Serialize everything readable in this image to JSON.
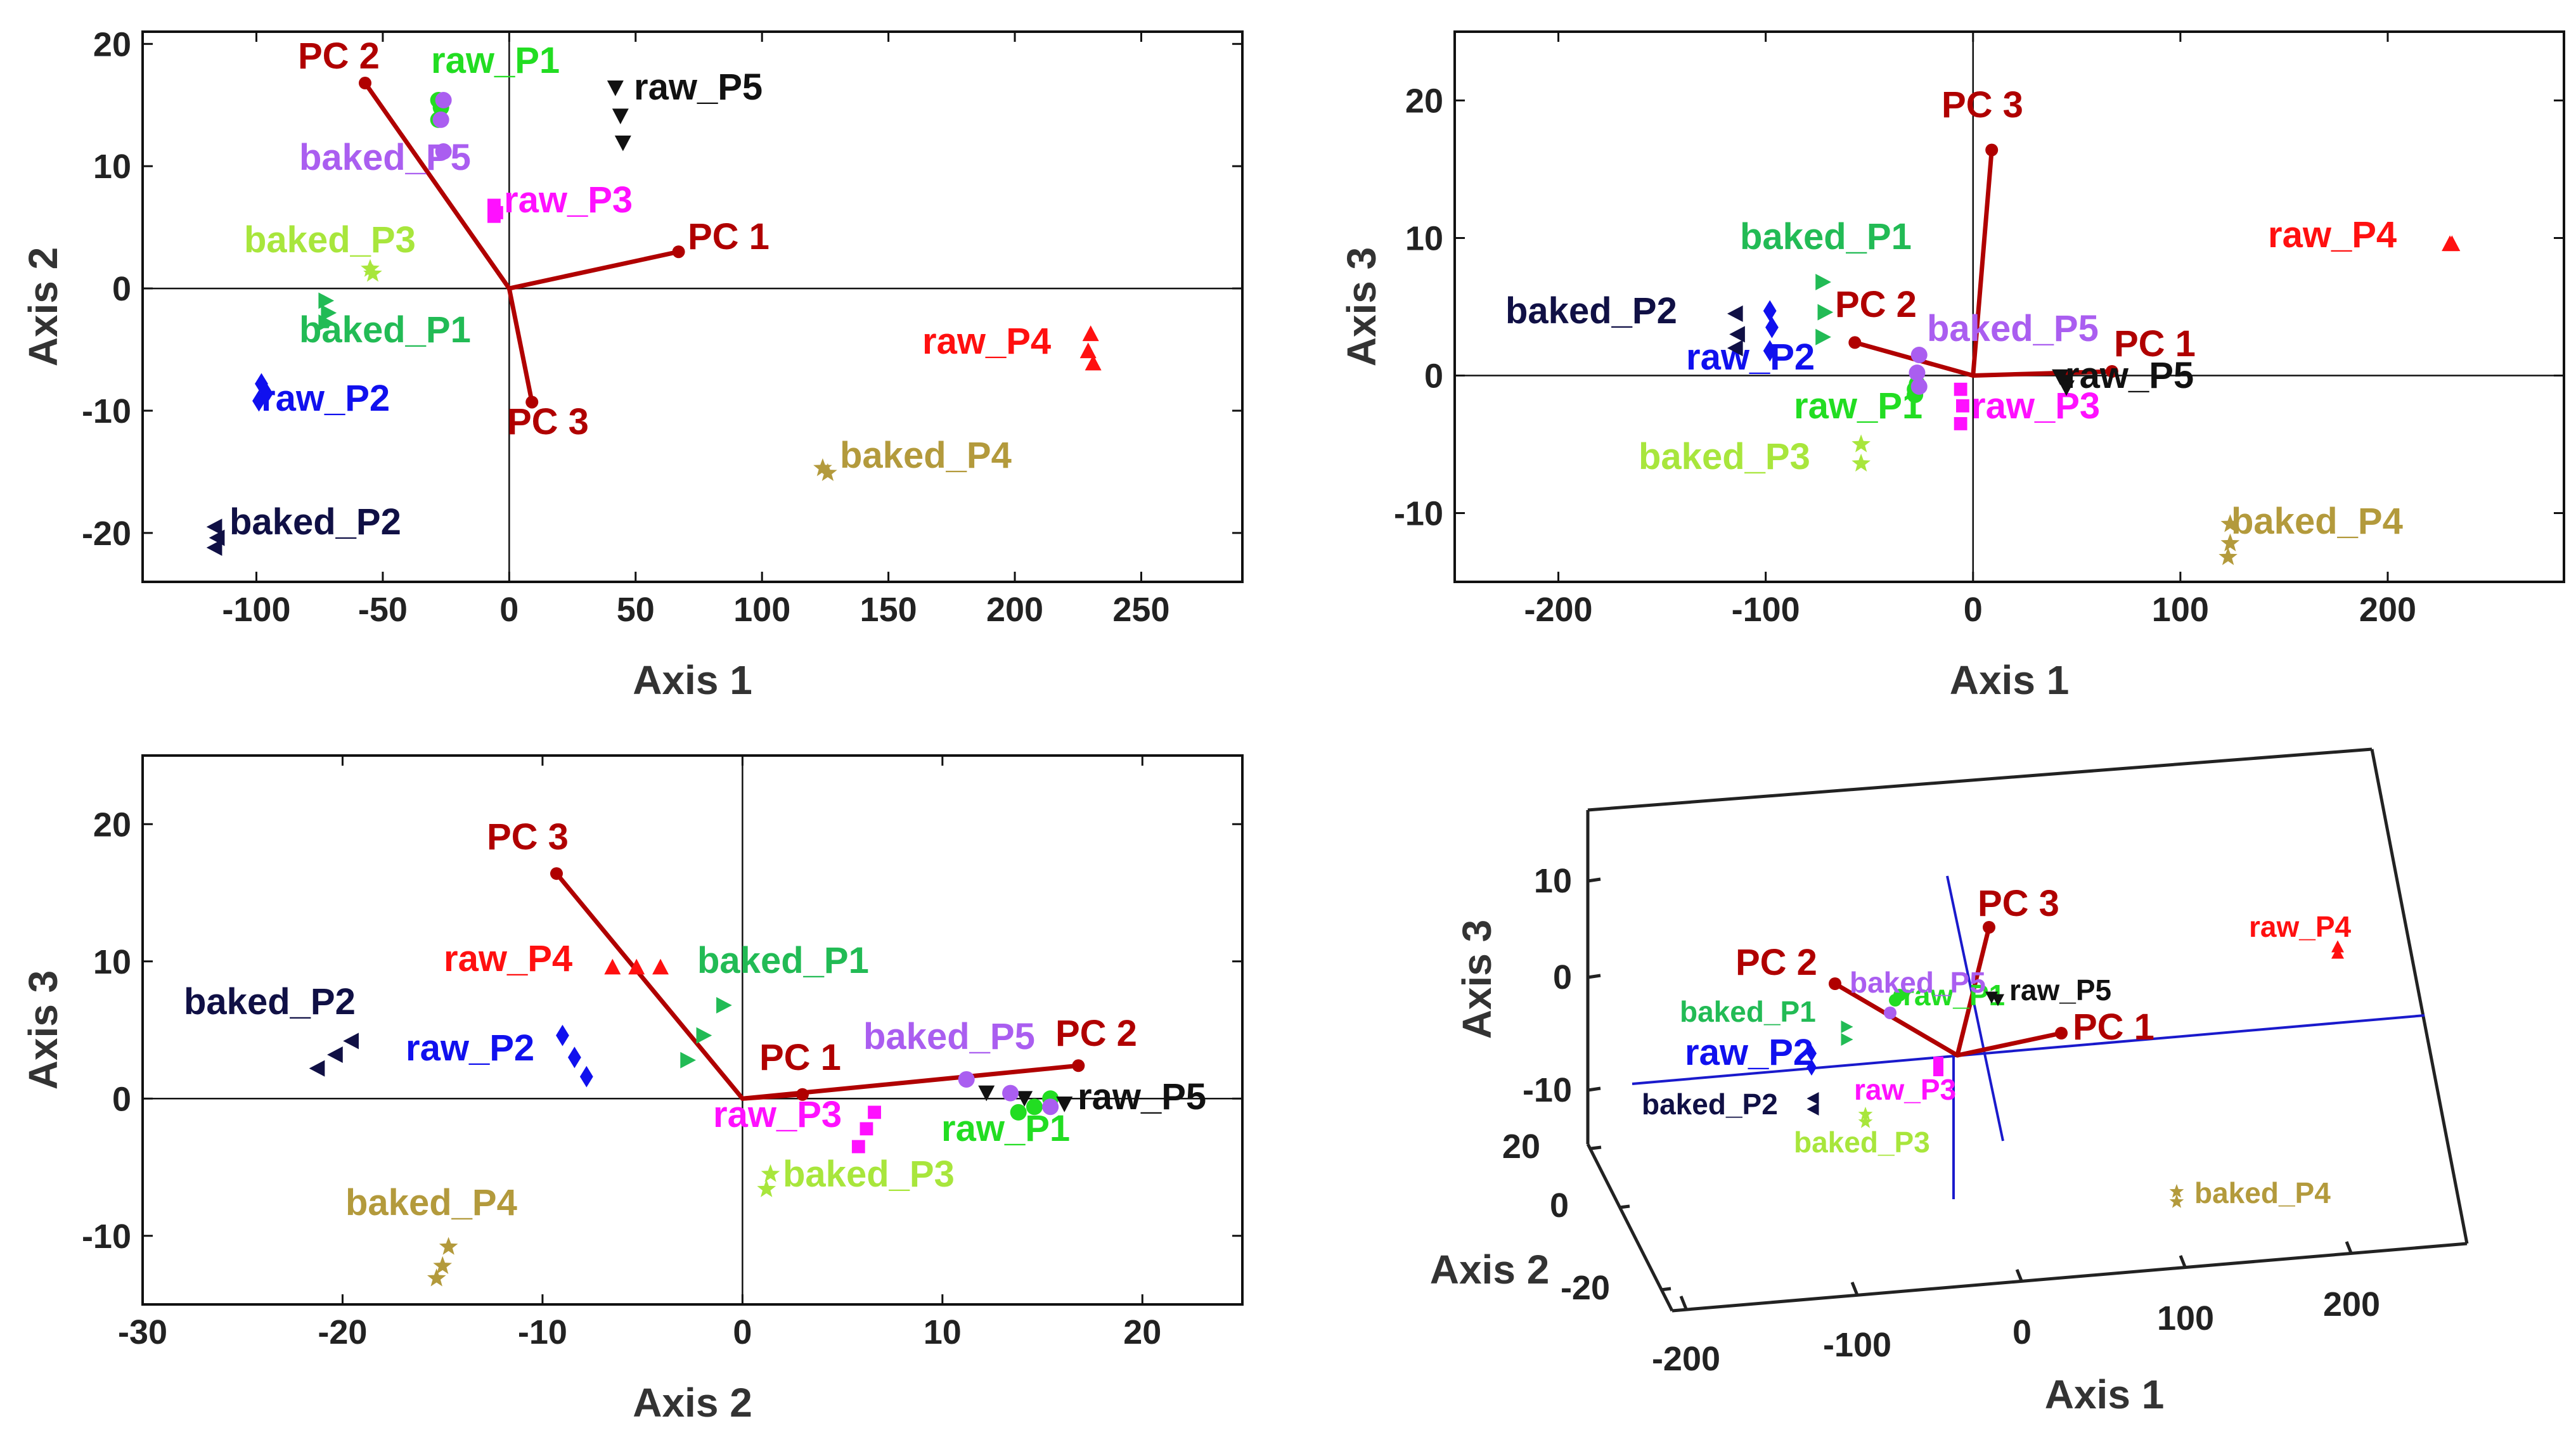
{
  "chart_data": [
    {
      "type": "scatter",
      "name": "axis1-vs-axis2",
      "xlabel": "Axis 1",
      "ylabel": "Axis 2",
      "xlim": [
        -145,
        290
      ],
      "ylim": [
        -24,
        21
      ],
      "xticks": [
        -100,
        -50,
        0,
        50,
        100,
        150,
        200,
        250
      ],
      "yticks": [
        -20,
        -10,
        0,
        10,
        20
      ],
      "loadings": [
        {
          "label": "PC 1",
          "x": 67,
          "y": 3
        },
        {
          "label": "PC 2",
          "x": -57,
          "y": 16.8
        },
        {
          "label": "PC 3",
          "x": 9,
          "y": -9.3
        }
      ],
      "groups": [
        {
          "label": "raw_P1",
          "color": "#22dd22",
          "marker": "circle",
          "points": [
            [
              -28,
              13.8
            ],
            [
              -27,
              14.8
            ],
            [
              -28,
              15.4
            ]
          ]
        },
        {
          "label": "raw_P2",
          "color": "#1010ee",
          "marker": "diamond",
          "points": [
            [
              -98,
              -7.8
            ],
            [
              -96,
              -8.6
            ],
            [
              -99,
              -9.2
            ]
          ]
        },
        {
          "label": "raw_P3",
          "color": "#ff10ff",
          "marker": "square",
          "points": [
            [
              -6,
              6.8
            ],
            [
              -5,
              6.2
            ],
            [
              -6,
              5.9
            ]
          ]
        },
        {
          "label": "raw_P4",
          "color": "#ff1010",
          "marker": "triangle-up",
          "points": [
            [
              230,
              -3.8
            ],
            [
              229,
              -5.2
            ],
            [
              231,
              -6.2
            ]
          ]
        },
        {
          "label": "raw_P5",
          "color": "#111111",
          "marker": "triangle-down",
          "points": [
            [
              42,
              16.5
            ],
            [
              44,
              14.2
            ],
            [
              45,
              12
            ]
          ]
        },
        {
          "label": "baked_P1",
          "color": "#22bb55",
          "marker": "triangle-right",
          "points": [
            [
              -73,
              -1
            ],
            [
              -72,
              -2
            ],
            [
              -73,
              -2.8
            ]
          ]
        },
        {
          "label": "baked_P2",
          "color": "#101045",
          "marker": "triangle-left",
          "points": [
            [
              -116,
              -19.5
            ],
            [
              -115,
              -20.4
            ],
            [
              -116,
              -21.2
            ]
          ]
        },
        {
          "label": "baked_P3",
          "color": "#a8e63c",
          "marker": "star",
          "points": [
            [
              -55,
              1.6
            ],
            [
              -54,
              1.2
            ]
          ]
        },
        {
          "label": "baked_P4",
          "color": "#b39a3c",
          "marker": "star",
          "points": [
            [
              124,
              -14.7
            ],
            [
              126,
              -15.1
            ]
          ]
        },
        {
          "label": "baked_P5",
          "color": "#aa5ef0",
          "marker": "circle",
          "points": [
            [
              -26,
              15.4
            ],
            [
              -27,
              13.8
            ],
            [
              -26,
              11.2
            ]
          ]
        }
      ]
    },
    {
      "type": "scatter",
      "name": "axis1-vs-axis3",
      "xlabel": "Axis 1",
      "ylabel": "Axis 3",
      "xlim": [
        -250,
        285
      ],
      "ylim": [
        -15,
        25
      ],
      "xticks": [
        -200,
        -100,
        0,
        100,
        200
      ],
      "yticks": [
        -10,
        0,
        10,
        20
      ],
      "loadings": [
        {
          "label": "PC 1",
          "x": 67,
          "y": 0.3
        },
        {
          "label": "PC 2",
          "x": -57,
          "y": 2.4
        },
        {
          "label": "PC 3",
          "x": 9,
          "y": 16.4
        }
      ],
      "groups": [
        {
          "label": "raw_P1",
          "color": "#22dd22",
          "marker": "circle",
          "points": [
            [
              -28,
              -1
            ],
            [
              -27,
              -0.6
            ],
            [
              -28,
              -1.4
            ]
          ]
        },
        {
          "label": "raw_P2",
          "color": "#1010ee",
          "marker": "diamond",
          "points": [
            [
              -98,
              4.7
            ],
            [
              -97,
              3.5
            ],
            [
              -98,
              1.8
            ]
          ]
        },
        {
          "label": "raw_P3",
          "color": "#ff10ff",
          "marker": "square",
          "points": [
            [
              -6,
              -1
            ],
            [
              -5,
              -2.2
            ],
            [
              -6,
              -3.5
            ]
          ]
        },
        {
          "label": "raw_P4",
          "color": "#ff1010",
          "marker": "triangle-up",
          "points": [
            [
              230,
              9.5
            ],
            [
              231,
              9.5
            ]
          ]
        },
        {
          "label": "raw_P5",
          "color": "#111111",
          "marker": "triangle-down",
          "points": [
            [
              42,
              0
            ],
            [
              44,
              -0.4
            ],
            [
              45,
              -0.8
            ]
          ]
        },
        {
          "label": "baked_P1",
          "color": "#22bb55",
          "marker": "triangle-right",
          "points": [
            [
              -73,
              6.8
            ],
            [
              -72,
              4.6
            ],
            [
              -73,
              2.8
            ]
          ]
        },
        {
          "label": "baked_P2",
          "color": "#101045",
          "marker": "triangle-left",
          "points": [
            [
              -114,
              4.5
            ],
            [
              -113,
              3
            ],
            [
              -114,
              2
            ]
          ]
        },
        {
          "label": "baked_P3",
          "color": "#a8e63c",
          "marker": "star",
          "points": [
            [
              -54,
              -5
            ],
            [
              -54,
              -6.4
            ]
          ]
        },
        {
          "label": "baked_P4",
          "color": "#b39a3c",
          "marker": "star",
          "points": [
            [
              124,
              -10.8
            ],
            [
              124,
              -12.2
            ],
            [
              123,
              -13.2
            ]
          ]
        },
        {
          "label": "baked_P5",
          "color": "#aa5ef0",
          "marker": "circle",
          "points": [
            [
              -26,
              1.5
            ],
            [
              -27,
              0.2
            ],
            [
              -26,
              -0.8
            ]
          ]
        }
      ]
    },
    {
      "type": "scatter",
      "name": "axis2-vs-axis3",
      "xlabel": "Axis 2",
      "ylabel": "Axis 3",
      "xlim": [
        -30,
        25
      ],
      "ylim": [
        -15,
        25
      ],
      "xticks": [
        -30,
        -20,
        -10,
        0,
        10,
        20
      ],
      "yticks": [
        -10,
        0,
        10,
        20
      ],
      "loadings": [
        {
          "label": "PC 1",
          "x": 3,
          "y": 0.3
        },
        {
          "label": "PC 2",
          "x": 16.8,
          "y": 2.4
        },
        {
          "label": "PC 3",
          "x": -9.3,
          "y": 16.4
        }
      ],
      "groups": [
        {
          "label": "raw_P1",
          "color": "#22dd22",
          "marker": "circle",
          "points": [
            [
              13.8,
              -1
            ],
            [
              14.6,
              -0.6
            ],
            [
              15.4,
              0
            ]
          ]
        },
        {
          "label": "raw_P2",
          "color": "#1010ee",
          "marker": "diamond",
          "points": [
            [
              -9,
              4.6
            ],
            [
              -8.4,
              3
            ],
            [
              -7.8,
              1.6
            ]
          ]
        },
        {
          "label": "raw_P3",
          "color": "#ff10ff",
          "marker": "square",
          "points": [
            [
              6.6,
              -1
            ],
            [
              6.2,
              -2.2
            ],
            [
              5.8,
              -3.5
            ]
          ]
        },
        {
          "label": "raw_P4",
          "color": "#ff1010",
          "marker": "triangle-up",
          "points": [
            [
              -6.5,
              9.5
            ],
            [
              -5.3,
              9.5
            ],
            [
              -4.1,
              9.5
            ]
          ]
        },
        {
          "label": "raw_P5",
          "color": "#111111",
          "marker": "triangle-down",
          "points": [
            [
              12.2,
              0.5
            ],
            [
              14.1,
              0.1
            ],
            [
              16.1,
              -0.3
            ]
          ]
        },
        {
          "label": "baked_P1",
          "color": "#22bb55",
          "marker": "triangle-right",
          "points": [
            [
              -1,
              6.8
            ],
            [
              -2,
              4.6
            ],
            [
              -2.8,
              2.8
            ]
          ]
        },
        {
          "label": "baked_P2",
          "color": "#101045",
          "marker": "triangle-left",
          "points": [
            [
              -19.5,
              4.2
            ],
            [
              -20.3,
              3.2
            ],
            [
              -21.2,
              2.2
            ]
          ]
        },
        {
          "label": "baked_P3",
          "color": "#a8e63c",
          "marker": "star",
          "points": [
            [
              1.4,
              -5.5
            ],
            [
              1.2,
              -6.6
            ]
          ]
        },
        {
          "label": "baked_P4",
          "color": "#b39a3c",
          "marker": "star",
          "points": [
            [
              -14.7,
              -10.8
            ],
            [
              -15,
              -12.2
            ],
            [
              -15.3,
              -13.1
            ]
          ]
        },
        {
          "label": "baked_P5",
          "color": "#aa5ef0",
          "marker": "circle",
          "points": [
            [
              11.2,
              1.4
            ],
            [
              13.4,
              0.4
            ],
            [
              15.4,
              -0.6
            ]
          ]
        }
      ]
    },
    {
      "type": "scatter3d",
      "name": "3d-view",
      "xlabel": "Axis 1",
      "ylabel": "Axis 2",
      "zlabel": "Axis 3",
      "xticks": [
        -200,
        -100,
        0,
        100,
        200
      ],
      "yticks": [
        -20,
        0,
        20
      ],
      "zticks": [
        -10,
        0,
        10
      ],
      "loadings": [
        {
          "label": "PC 1",
          "x": 67,
          "y": 3,
          "z": 0.3
        },
        {
          "label": "PC 2",
          "x": -57,
          "y": 16.8,
          "z": 2.4
        },
        {
          "label": "PC 3",
          "x": 9,
          "y": -9.3,
          "z": 16.4
        }
      ],
      "groups": [
        {
          "label": "raw_P1",
          "color": "#22dd22",
          "marker": "circle"
        },
        {
          "label": "raw_P2",
          "color": "#1010ee",
          "marker": "diamond"
        },
        {
          "label": "raw_P3",
          "color": "#ff10ff",
          "marker": "square"
        },
        {
          "label": "raw_P4",
          "color": "#ff1010",
          "marker": "triangle-up"
        },
        {
          "label": "raw_P5",
          "color": "#111111",
          "marker": "triangle-down"
        },
        {
          "label": "baked_P1",
          "color": "#22bb55",
          "marker": "triangle-right"
        },
        {
          "label": "baked_P2",
          "color": "#101045",
          "marker": "triangle-left"
        },
        {
          "label": "baked_P3",
          "color": "#a8e63c",
          "marker": "star"
        },
        {
          "label": "baked_P4",
          "color": "#b39a3c",
          "marker": "star"
        },
        {
          "label": "baked_P5",
          "color": "#aa5ef0",
          "marker": "circle"
        }
      ]
    }
  ],
  "colors": {
    "loading_line": "#b00000",
    "axis_3d": "#1a1acc",
    "frame": "#111111"
  }
}
